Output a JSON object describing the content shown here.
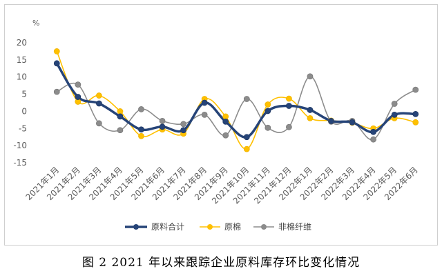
{
  "caption": "图 2   2021 年以来跟踪企业原料库存环比变化情况",
  "chart_data": {
    "type": "line",
    "unit": "%",
    "categories": [
      "2021年1月",
      "2021年2月",
      "2021年3月",
      "2021年4月",
      "2021年5月",
      "2021年6月",
      "2021年7月",
      "2021年8月",
      "2021年9月",
      "2021年10月",
      "2021年11月",
      "2021年12月",
      "2022年1月",
      "2022年2月",
      "2022年3月",
      "2022年4月",
      "2022年5月",
      "2022年6月"
    ],
    "ylim": [
      -15,
      20
    ],
    "yticks": [
      20,
      15,
      10,
      5,
      0,
      -5,
      -10,
      -15
    ],
    "grid": false,
    "legend_position": "bottom",
    "series": [
      {
        "name": "原料合计",
        "color": "#264478",
        "values": [
          14.0,
          4.2,
          2.3,
          -1.5,
          -5.3,
          -4.5,
          -5.5,
          2.5,
          -3.0,
          -7.5,
          0.1,
          1.6,
          0.4,
          -2.8,
          -3.2,
          -6.0,
          -1.0,
          -0.8
        ]
      },
      {
        "name": "原棉",
        "color": "#FFC000",
        "values": [
          17.5,
          2.8,
          4.6,
          0.0,
          -7.2,
          -5.3,
          -6.5,
          3.6,
          -1.5,
          -11.0,
          2.0,
          3.7,
          -2.0,
          -2.7,
          -3.3,
          -5.0,
          -2.0,
          -3.2
        ]
      },
      {
        "name": "非棉纤维",
        "color": "#8C8C8C",
        "values": [
          5.7,
          7.8,
          -3.5,
          -5.5,
          0.6,
          -2.8,
          -3.7,
          -1.0,
          -7.0,
          3.6,
          -4.8,
          -4.6,
          10.2,
          -3.0,
          -2.8,
          -8.2,
          2.2,
          6.3
        ]
      }
    ]
  }
}
